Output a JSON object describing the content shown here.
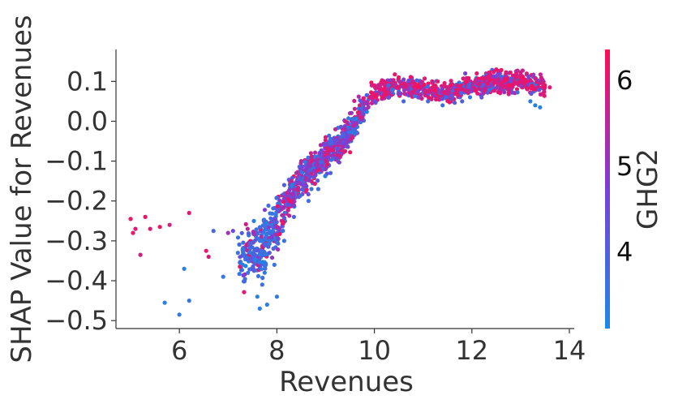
{
  "chart_data": {
    "type": "scatter",
    "title": "",
    "xlabel": "Revenues",
    "ylabel": "SHAP Value for Revenues",
    "xlim": [
      4.7,
      14.1
    ],
    "ylim": [
      -0.52,
      0.18
    ],
    "x_ticks": [
      6,
      8,
      10,
      12,
      14
    ],
    "x_tick_labels": [
      "6",
      "8",
      "10",
      "12",
      "14"
    ],
    "y_ticks": [
      0.1,
      0.0,
      -0.1,
      -0.2,
      -0.3,
      -0.4,
      -0.5
    ],
    "y_tick_labels": [
      "0.1",
      "0.0",
      "−0.1",
      "−0.2",
      "−0.3",
      "−0.4",
      "−0.5"
    ],
    "grid": false,
    "colorbar": {
      "label": "GHG2",
      "range": [
        3.1,
        6.35
      ],
      "ticks": [
        4,
        5,
        6
      ],
      "tick_labels": [
        "4",
        "5",
        "6"
      ],
      "color_low": "#1e88e5",
      "color_mid": "#7a3fd9",
      "color_high": "#ff0d57"
    },
    "trend": [
      [
        7.0,
        -0.34
      ],
      [
        7.6,
        -0.33
      ],
      [
        8.0,
        -0.25
      ],
      [
        8.4,
        -0.16
      ],
      [
        8.8,
        -0.11
      ],
      [
        9.2,
        -0.07
      ],
      [
        9.6,
        -0.01
      ],
      [
        10.0,
        0.07
      ],
      [
        10.5,
        0.09
      ],
      [
        11.0,
        0.08
      ],
      [
        11.5,
        0.07
      ],
      [
        12.0,
        0.09
      ],
      [
        12.5,
        0.1
      ],
      [
        13.0,
        0.1
      ],
      [
        13.6,
        0.09
      ]
    ],
    "points": [
      [
        5.0,
        -0.245,
        6.2
      ],
      [
        5.05,
        -0.28,
        6.1
      ],
      [
        5.1,
        -0.27,
        6.0
      ],
      [
        5.2,
        -0.335,
        5.9
      ],
      [
        5.3,
        -0.24,
        6.2
      ],
      [
        5.4,
        -0.27,
        6.0
      ],
      [
        5.6,
        -0.265,
        6.2
      ],
      [
        5.8,
        -0.26,
        5.8
      ],
      [
        6.2,
        -0.23,
        6.0
      ],
      [
        6.55,
        -0.325,
        6.1
      ],
      [
        6.6,
        -0.34,
        5.9
      ],
      [
        5.7,
        -0.455,
        3.3
      ],
      [
        6.0,
        -0.485,
        3.4
      ],
      [
        6.1,
        -0.37,
        3.3
      ],
      [
        6.2,
        -0.45,
        3.5
      ],
      [
        6.7,
        -0.275,
        3.8
      ],
      [
        6.9,
        -0.39,
        3.4
      ],
      [
        7.0,
        -0.28,
        5.2
      ],
      [
        7.1,
        -0.275,
        4.5
      ],
      [
        7.2,
        -0.33,
        3.6
      ],
      [
        7.3,
        -0.36,
        3.3
      ],
      [
        7.4,
        -0.27,
        5.5
      ],
      [
        7.45,
        -0.31,
        4.0
      ],
      [
        7.55,
        -0.35,
        3.4
      ],
      [
        7.6,
        -0.44,
        3.2
      ],
      [
        7.65,
        -0.47,
        3.3
      ],
      [
        7.7,
        -0.41,
        3.6
      ],
      [
        7.75,
        -0.38,
        3.5
      ],
      [
        7.8,
        -0.46,
        3.3
      ],
      [
        7.85,
        -0.33,
        4.2
      ],
      [
        7.9,
        -0.29,
        4.8
      ],
      [
        7.95,
        -0.36,
        3.5
      ],
      [
        8.0,
        -0.44,
        3.4
      ],
      [
        8.05,
        -0.27,
        5.0
      ],
      [
        8.1,
        -0.22,
        5.2
      ],
      [
        8.15,
        -0.3,
        3.6
      ],
      [
        8.2,
        -0.18,
        5.6
      ],
      [
        8.25,
        -0.21,
        4.4
      ],
      [
        8.3,
        -0.15,
        5.8
      ],
      [
        8.35,
        -0.24,
        3.9
      ],
      [
        8.4,
        -0.13,
        5.3
      ],
      [
        8.45,
        -0.19,
        4.1
      ],
      [
        8.5,
        -0.1,
        5.5
      ],
      [
        8.55,
        -0.16,
        4.6
      ],
      [
        8.6,
        -0.12,
        4.9
      ],
      [
        8.65,
        -0.2,
        3.7
      ],
      [
        8.7,
        -0.08,
        5.7
      ],
      [
        8.75,
        -0.14,
        4.3
      ],
      [
        8.8,
        -0.11,
        5.0
      ],
      [
        8.85,
        -0.17,
        3.8
      ],
      [
        8.9,
        -0.06,
        5.4
      ],
      [
        8.95,
        -0.12,
        4.2
      ],
      [
        9.0,
        -0.04,
        5.9
      ],
      [
        9.05,
        -0.09,
        4.7
      ],
      [
        9.1,
        -0.13,
        3.9
      ],
      [
        9.2,
        -0.02,
        5.6
      ],
      [
        9.25,
        -0.07,
        4.4
      ],
      [
        9.3,
        -0.05,
        5.1
      ],
      [
        9.4,
        0.0,
        5.8
      ],
      [
        9.45,
        -0.04,
        4.6
      ],
      [
        9.5,
        0.02,
        5.3
      ],
      [
        9.6,
        -0.02,
        4.0
      ],
      [
        9.7,
        0.04,
        5.7
      ],
      [
        9.8,
        0.03,
        4.8
      ],
      [
        9.9,
        0.06,
        5.9
      ],
      [
        10.0,
        0.05,
        4.5
      ],
      [
        10.0,
        0.09,
        6.1
      ],
      [
        10.1,
        0.07,
        5.2
      ],
      [
        10.2,
        0.1,
        6.0
      ],
      [
        10.3,
        0.06,
        4.3
      ],
      [
        10.4,
        0.09,
        5.5
      ],
      [
        10.5,
        0.11,
        6.2
      ],
      [
        10.6,
        0.05,
        3.9
      ],
      [
        10.7,
        0.08,
        5.0
      ],
      [
        10.8,
        0.1,
        5.8
      ],
      [
        10.9,
        0.06,
        4.6
      ],
      [
        11.0,
        0.09,
        6.0
      ],
      [
        11.1,
        0.05,
        3.8
      ],
      [
        11.2,
        0.07,
        5.3
      ],
      [
        11.3,
        0.1,
        6.1
      ],
      [
        11.4,
        0.04,
        3.6
      ],
      [
        11.5,
        0.08,
        5.6
      ],
      [
        11.6,
        0.06,
        4.4
      ],
      [
        11.7,
        0.09,
        5.9
      ],
      [
        11.8,
        0.05,
        4.0
      ],
      [
        11.9,
        0.1,
        6.2
      ],
      [
        12.0,
        0.08,
        5.1
      ],
      [
        12.1,
        0.12,
        6.0
      ],
      [
        12.2,
        0.06,
        4.2
      ],
      [
        12.3,
        0.11,
        5.8
      ],
      [
        12.4,
        0.09,
        4.8
      ],
      [
        12.5,
        0.13,
        6.2
      ],
      [
        12.6,
        0.08,
        5.4
      ],
      [
        12.7,
        0.12,
        6.0
      ],
      [
        12.8,
        0.1,
        4.6
      ],
      [
        12.9,
        0.11,
        5.9
      ],
      [
        13.0,
        0.09,
        5.2
      ],
      [
        13.1,
        0.1,
        6.1
      ],
      [
        13.2,
        0.05,
        3.4
      ],
      [
        13.3,
        0.04,
        3.3
      ],
      [
        13.4,
        0.035,
        3.2
      ],
      [
        13.5,
        0.09,
        6.1
      ],
      [
        13.6,
        0.085,
        6.0
      ]
    ]
  }
}
